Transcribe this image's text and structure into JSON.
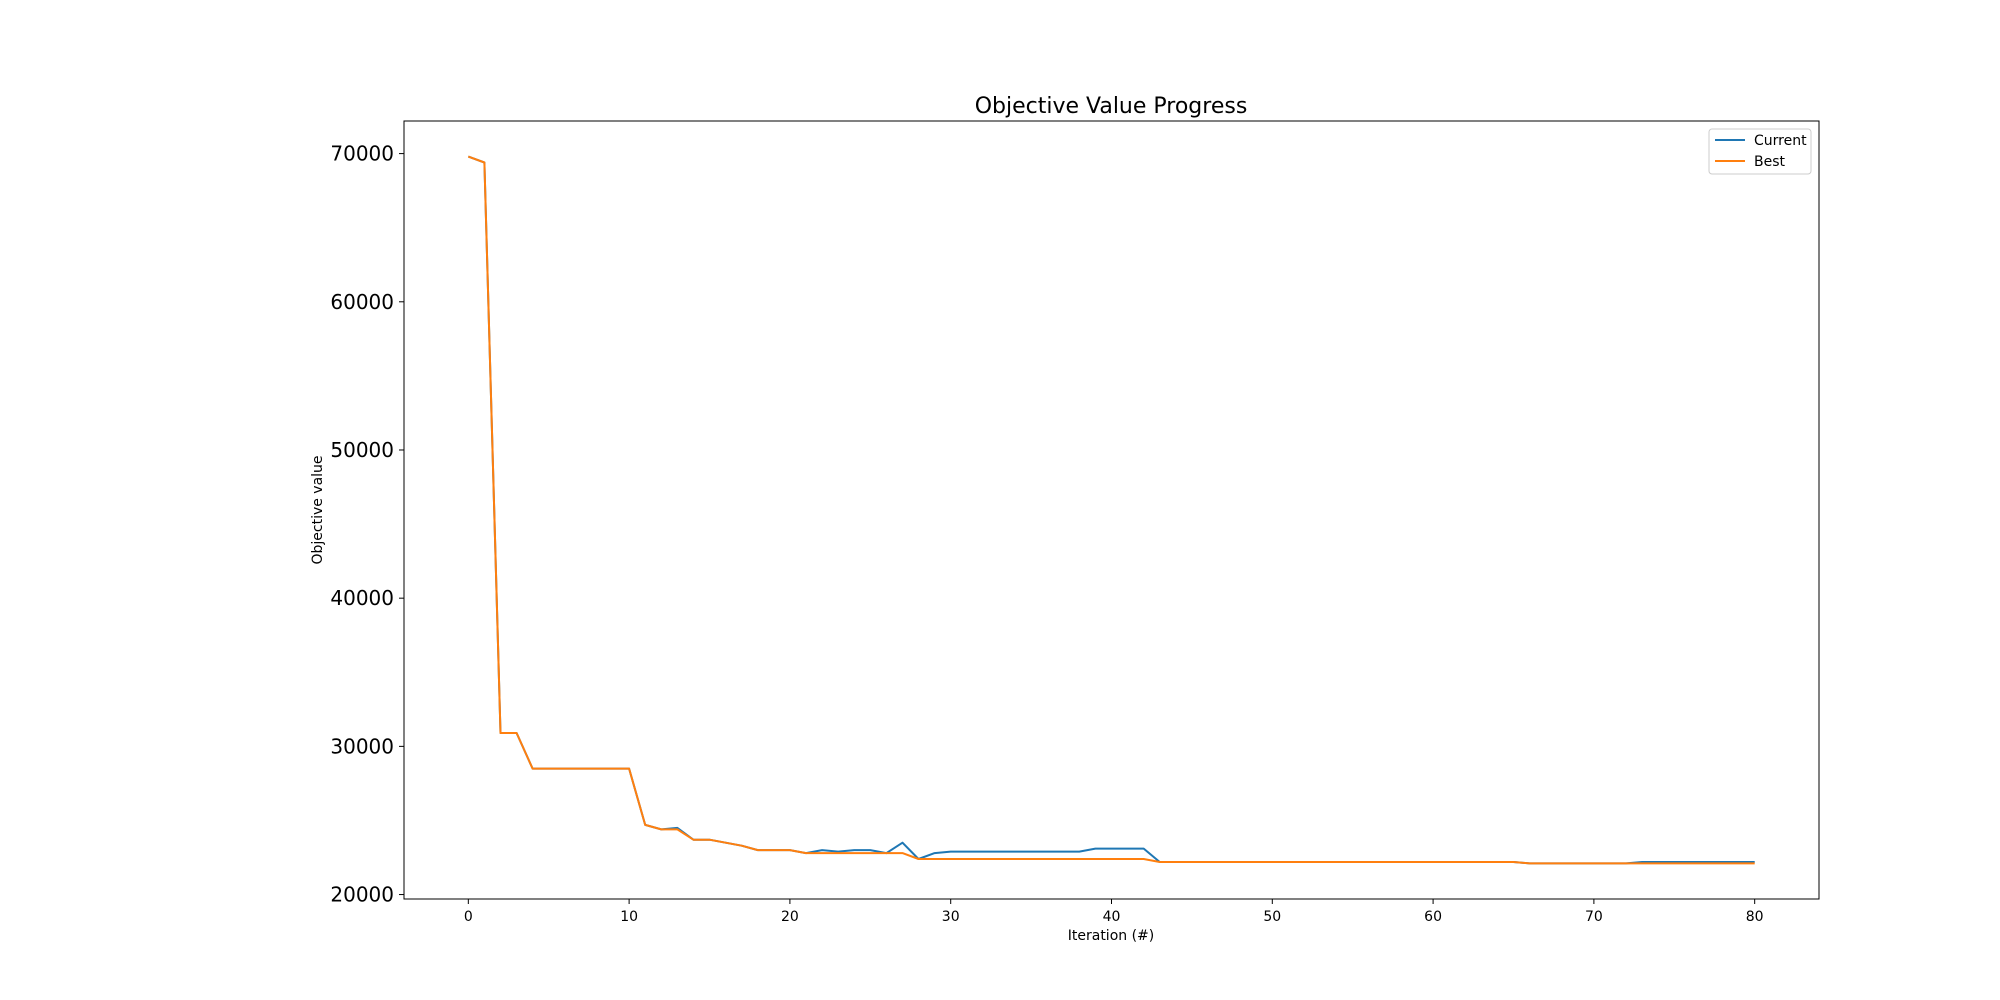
{
  "chart_data": {
    "type": "line",
    "title": "Objective Value Progress",
    "xlabel": "Iteration (#)",
    "ylabel": "Objective value",
    "xlim": [
      -4,
      84
    ],
    "ylim": [
      19700,
      72200
    ],
    "xticks": [
      0,
      10,
      20,
      30,
      40,
      50,
      60,
      70,
      80
    ],
    "yticks": [
      20000,
      30000,
      40000,
      50000,
      60000,
      70000
    ],
    "grid": false,
    "legend": "top-right",
    "x": [
      0,
      1,
      2,
      3,
      4,
      5,
      6,
      7,
      8,
      9,
      10,
      11,
      12,
      13,
      14,
      15,
      16,
      17,
      18,
      19,
      20,
      21,
      22,
      23,
      24,
      25,
      26,
      27,
      28,
      29,
      30,
      31,
      32,
      33,
      34,
      35,
      36,
      37,
      38,
      39,
      40,
      41,
      42,
      43,
      44,
      45,
      46,
      47,
      48,
      49,
      50,
      51,
      52,
      53,
      54,
      55,
      56,
      57,
      58,
      59,
      60,
      61,
      62,
      63,
      64,
      65,
      66,
      67,
      68,
      69,
      70,
      71,
      72,
      73,
      74,
      75,
      76,
      77,
      78,
      79,
      80
    ],
    "series": [
      {
        "name": "Current",
        "color": "#1f77b4",
        "values": [
          69800,
          69400,
          30900,
          30900,
          28500,
          28500,
          28500,
          28500,
          28500,
          28500,
          28500,
          24700,
          24400,
          24500,
          23700,
          23700,
          23500,
          23300,
          23000,
          23000,
          23000,
          22800,
          23000,
          22900,
          23000,
          23000,
          22800,
          23500,
          22400,
          22800,
          22900,
          22900,
          22900,
          22900,
          22900,
          22900,
          22900,
          22900,
          22900,
          23100,
          23100,
          23100,
          23100,
          22200,
          22200,
          22200,
          22200,
          22200,
          22200,
          22200,
          22200,
          22200,
          22200,
          22200,
          22200,
          22200,
          22200,
          22200,
          22200,
          22200,
          22200,
          22200,
          22200,
          22200,
          22200,
          22200,
          22100,
          22100,
          22100,
          22100,
          22100,
          22100,
          22100,
          22200,
          22200,
          22200,
          22200,
          22200,
          22200,
          22200,
          22200
        ]
      },
      {
        "name": "Best",
        "color": "#ff7f0e",
        "values": [
          69800,
          69400,
          30900,
          30900,
          28500,
          28500,
          28500,
          28500,
          28500,
          28500,
          28500,
          24700,
          24400,
          24400,
          23700,
          23700,
          23500,
          23300,
          23000,
          23000,
          23000,
          22800,
          22800,
          22800,
          22800,
          22800,
          22800,
          22800,
          22400,
          22400,
          22400,
          22400,
          22400,
          22400,
          22400,
          22400,
          22400,
          22400,
          22400,
          22400,
          22400,
          22400,
          22400,
          22200,
          22200,
          22200,
          22200,
          22200,
          22200,
          22200,
          22200,
          22200,
          22200,
          22200,
          22200,
          22200,
          22200,
          22200,
          22200,
          22200,
          22200,
          22200,
          22200,
          22200,
          22200,
          22200,
          22100,
          22100,
          22100,
          22100,
          22100,
          22100,
          22100,
          22100,
          22100,
          22100,
          22100,
          22100,
          22100,
          22100,
          22100
        ]
      }
    ]
  }
}
